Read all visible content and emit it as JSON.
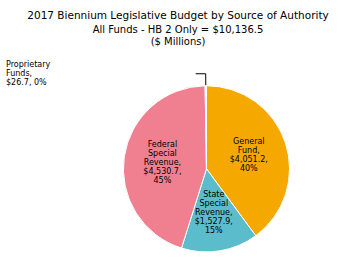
{
  "chart_data": {
    "type": "pie",
    "title": "2017 Biennium Legislative Budget by Source of Authority",
    "subtitle": "All Funds - HB 2 Only = $10,136.5\n($ Millions)",
    "categories": [
      "General\nFund,\n$4,051.2,\n40%",
      "State\nSpecial\nRevenue,\n$1,527.9,\n15%",
      "Federal\nSpecial\nRevenue,\n$4,530.7,\n45%",
      "Proprietary\nFunds,\n$26.7, 0%"
    ],
    "values": [
      40,
      15,
      45,
      0.263
    ],
    "colors": [
      "#F5A800",
      "#5BBCCC",
      "#F08090",
      "#FAF0E6"
    ]
  }
}
